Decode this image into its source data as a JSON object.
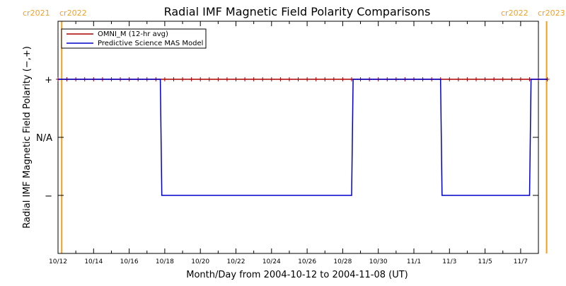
{
  "chart_data": {
    "type": "line",
    "title": "Radial IMF Magnetic Field Polarity Comparisons",
    "xlabel": "Month/Day from 2004-10-12 to 2004-11-08 (UT)",
    "ylabel": "Radial IMF Magnetic Field Polarity (−,+)",
    "x_start": "2004-10-12",
    "x_end": "2004-11-08",
    "x_ticks": [
      "10/12",
      "10/14",
      "10/16",
      "10/18",
      "10/20",
      "10/22",
      "10/24",
      "10/26",
      "10/28",
      "10/30",
      "11/1",
      "11/3",
      "11/5",
      "11/7"
    ],
    "y_ticks": [
      "+",
      "N/A",
      "−"
    ],
    "y_levels": {
      "+": 1,
      "N/A": 0,
      "−": -1
    },
    "ylim": [
      -2,
      2
    ],
    "legend_position": "top-left",
    "carrington_rotations": [
      {
        "left": "cr2021",
        "right": "cr2022",
        "date": "2004-10-12T05:00"
      },
      {
        "left": "cr2022",
        "right": "cr2023",
        "date": "2004-11-08T11:00"
      }
    ],
    "series": [
      {
        "name": "OMNI_M (12-hr avg)",
        "color": "#aa0000",
        "marker": "plus",
        "points": [
          [
            "2004-10-12T00:00",
            1
          ],
          [
            "2004-10-12T12:00",
            1
          ],
          [
            "2004-10-13T00:00",
            1
          ],
          [
            "2004-10-13T12:00",
            1
          ],
          [
            "2004-10-14T00:00",
            1
          ],
          [
            "2004-10-14T12:00",
            1
          ],
          [
            "2004-10-15T00:00",
            1
          ],
          [
            "2004-10-15T12:00",
            1
          ],
          [
            "2004-10-16T00:00",
            1
          ],
          [
            "2004-10-16T12:00",
            1
          ],
          [
            "2004-10-17T00:00",
            1
          ],
          [
            "2004-10-17T12:00",
            1
          ],
          [
            "2004-10-18T00:00",
            1
          ],
          [
            "2004-10-18T12:00",
            1
          ],
          [
            "2004-10-19T00:00",
            1
          ],
          [
            "2004-10-19T12:00",
            1
          ],
          [
            "2004-10-20T00:00",
            1
          ],
          [
            "2004-10-20T12:00",
            1
          ],
          [
            "2004-10-21T00:00",
            1
          ],
          [
            "2004-10-21T12:00",
            1
          ],
          [
            "2004-10-22T00:00",
            1
          ],
          [
            "2004-10-22T12:00",
            1
          ],
          [
            "2004-10-23T00:00",
            1
          ],
          [
            "2004-10-23T12:00",
            1
          ],
          [
            "2004-10-24T00:00",
            1
          ],
          [
            "2004-10-24T12:00",
            1
          ],
          [
            "2004-10-25T00:00",
            1
          ],
          [
            "2004-10-25T12:00",
            1
          ],
          [
            "2004-10-26T00:00",
            1
          ],
          [
            "2004-10-26T12:00",
            1
          ],
          [
            "2004-10-27T00:00",
            1
          ],
          [
            "2004-10-27T12:00",
            1
          ],
          [
            "2004-10-28T00:00",
            1
          ],
          [
            "2004-10-28T12:00",
            1
          ],
          [
            "2004-10-29T00:00",
            1
          ],
          [
            "2004-10-29T12:00",
            1
          ],
          [
            "2004-10-30T00:00",
            1
          ],
          [
            "2004-10-30T12:00",
            1
          ],
          [
            "2004-10-31T00:00",
            1
          ],
          [
            "2004-10-31T12:00",
            1
          ],
          [
            "2004-11-01T00:00",
            1
          ],
          [
            "2004-11-01T12:00",
            1
          ],
          [
            "2004-11-02T00:00",
            1
          ],
          [
            "2004-11-02T12:00",
            1
          ],
          [
            "2004-11-03T00:00",
            1
          ],
          [
            "2004-11-03T12:00",
            1
          ],
          [
            "2004-11-04T00:00",
            1
          ],
          [
            "2004-11-04T12:00",
            1
          ],
          [
            "2004-11-05T00:00",
            1
          ],
          [
            "2004-11-05T12:00",
            1
          ],
          [
            "2004-11-06T00:00",
            1
          ],
          [
            "2004-11-06T12:00",
            1
          ],
          [
            "2004-11-07T00:00",
            1
          ],
          [
            "2004-11-07T12:00",
            1
          ],
          [
            "2004-11-08T00:00",
            1
          ],
          [
            "2004-11-08T12:00",
            1
          ]
        ]
      },
      {
        "name": "Predictive Science MAS Model",
        "color": "#0000cc",
        "points": [
          [
            "2004-10-12T00:00",
            1
          ],
          [
            "2004-10-17T18:00",
            1
          ],
          [
            "2004-10-17T20:00",
            -1
          ],
          [
            "2004-10-28T12:00",
            -1
          ],
          [
            "2004-10-28T14:00",
            1
          ],
          [
            "2004-11-02T12:00",
            1
          ],
          [
            "2004-11-02T14:00",
            -1
          ],
          [
            "2004-11-07T12:00",
            -1
          ],
          [
            "2004-11-07T14:00",
            1
          ],
          [
            "2004-11-08T12:00",
            1
          ]
        ]
      }
    ]
  }
}
